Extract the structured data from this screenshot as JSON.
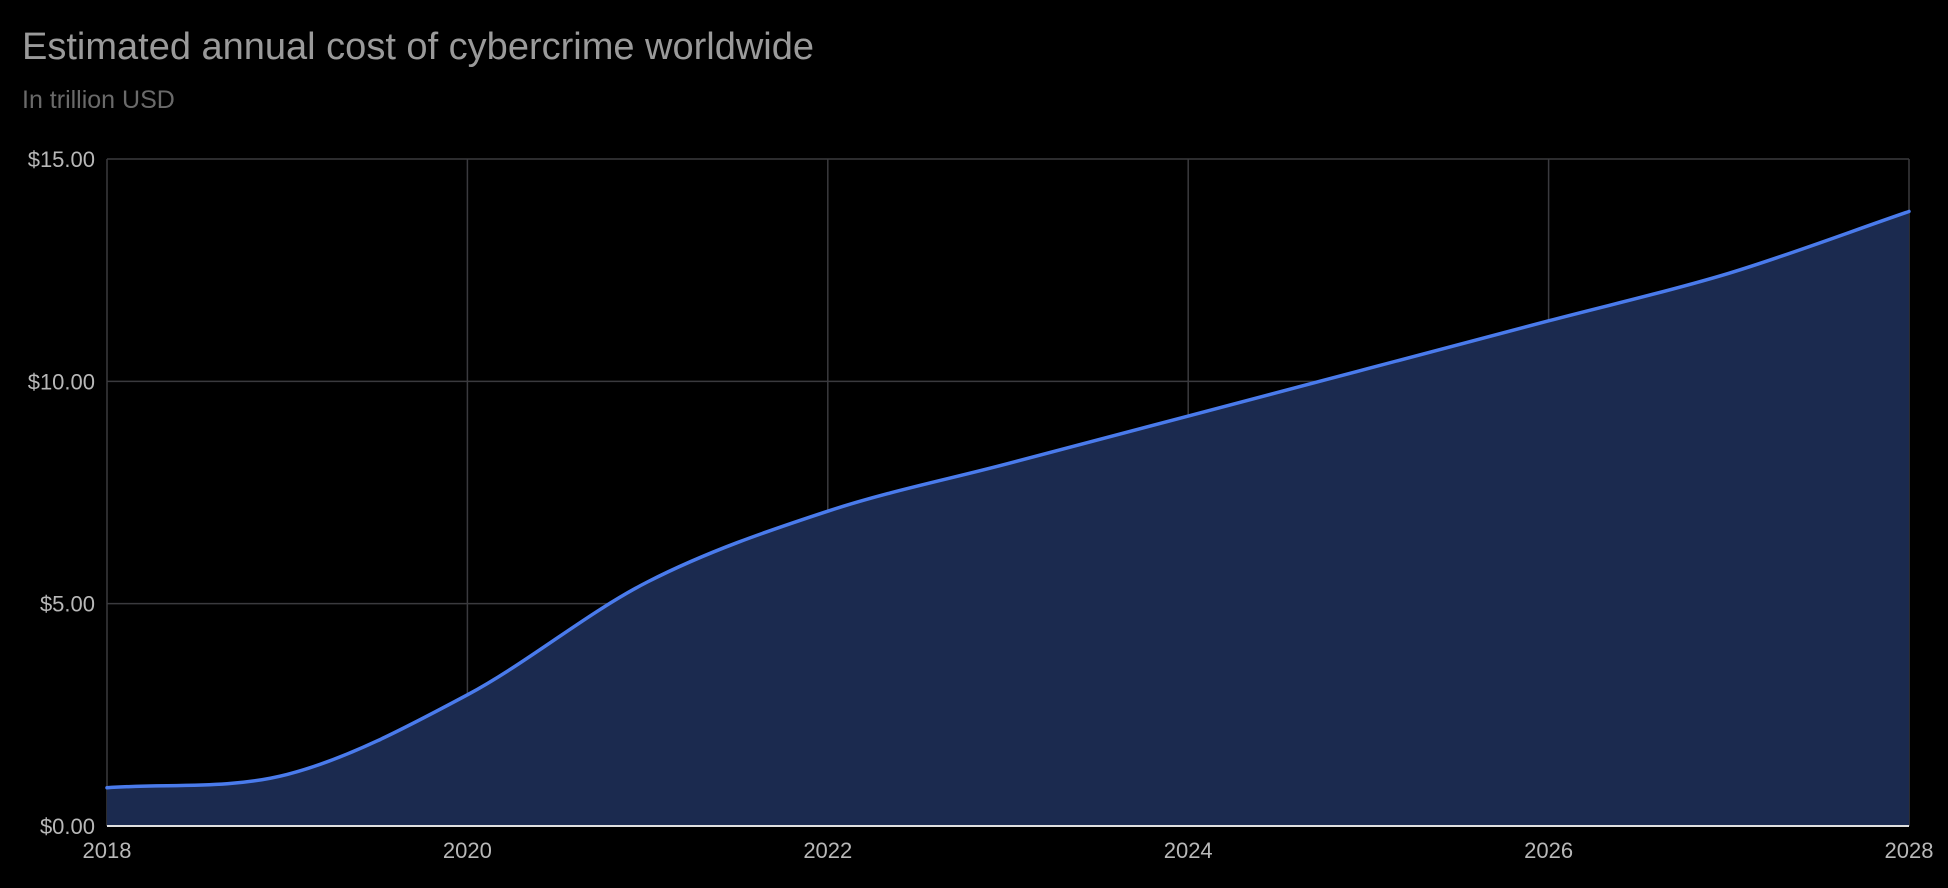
{
  "colors": {
    "background": "#000000",
    "title": "#9a9a9a",
    "subtitle": "#6a6a6a",
    "grid": "#3a3a3e",
    "tick_label": "#b8b8b8",
    "line": "#4a7bec",
    "area_fill": "#1b2a4f",
    "baseline": "#e0e0e0"
  },
  "chart_data": {
    "type": "area",
    "title": "Estimated annual cost of cybercrime worldwide",
    "subtitle": "In trillion USD",
    "xlabel": "",
    "ylabel": "",
    "x": [
      2018,
      2019,
      2020,
      2021,
      2022,
      2023,
      2024,
      2025,
      2026,
      2027,
      2028
    ],
    "series": [
      {
        "values": [
          0.86,
          1.16,
          2.95,
          5.49,
          7.08,
          8.15,
          9.22,
          10.29,
          11.36,
          12.43,
          13.82
        ]
      }
    ],
    "xlim": [
      2018,
      2028
    ],
    "ylim": [
      0,
      15
    ],
    "x_ticks": [
      2018,
      2020,
      2022,
      2024,
      2026,
      2028
    ],
    "x_tick_labels": [
      "2018",
      "2020",
      "2022",
      "2024",
      "2026",
      "2028"
    ],
    "y_ticks": [
      0,
      5,
      10,
      15
    ],
    "y_tick_labels": [
      "$0.00",
      "$5.00",
      "$10.00",
      "$15.00"
    ],
    "grid": true,
    "legend": "none"
  }
}
